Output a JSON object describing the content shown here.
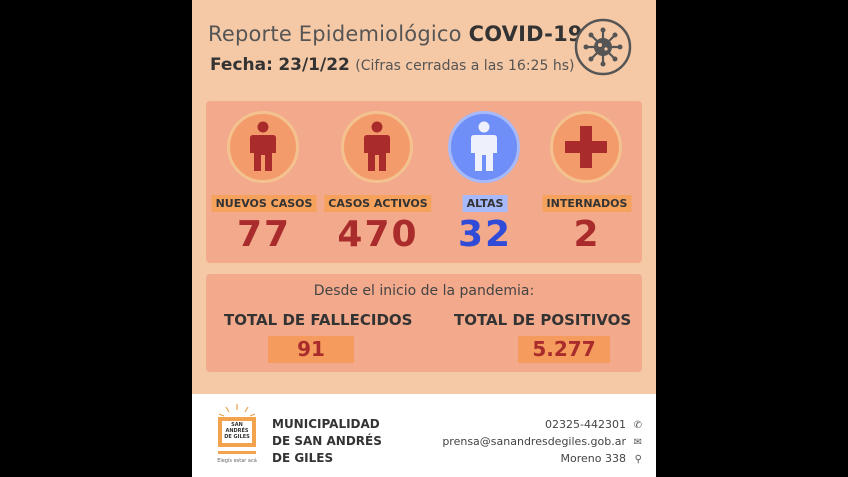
{
  "header": {
    "title_prefix": "Reporte Epidemiológico",
    "title_bold": "COVID-19",
    "date_label": "Fecha:",
    "date_value": "23/1/22",
    "date_note": "(Cifras cerradas a las 16:25 hs)"
  },
  "stats": [
    {
      "label": "NUEVOS CASOS",
      "value": "77",
      "icon": "person-icon"
    },
    {
      "label": "CASOS ACTIVOS",
      "value": "470",
      "icon": "person-icon"
    },
    {
      "label": "ALTAS",
      "value": "32",
      "icon": "person-icon"
    },
    {
      "label": "INTERNADOS",
      "value": "2",
      "icon": "red-cross-icon"
    }
  ],
  "totals": {
    "since_label": "Desde el inicio de la pandemia:",
    "deaths_label": "TOTAL DE FALLECIDOS",
    "deaths_value": "91",
    "positives_label": "TOTAL DE POSITIVOS",
    "positives_value": "5.277"
  },
  "footer": {
    "org_line1": "MUNICIPALIDAD",
    "org_line2": "DE SAN ANDRÉS",
    "org_line3": "DE GILES",
    "phone": "02325-442301",
    "email": "prensa@sanandresdegiles.gob.ar",
    "address": "Moreno 338",
    "logo_text": "SAN ANDRÉS DE GILES",
    "logo_slogan": "Elegís estar acá"
  },
  "colors": {
    "background": "#f6c9a6",
    "panel": "#f2a98c",
    "value_red": "#a92b2b",
    "value_blue": "#2f4bd8"
  }
}
